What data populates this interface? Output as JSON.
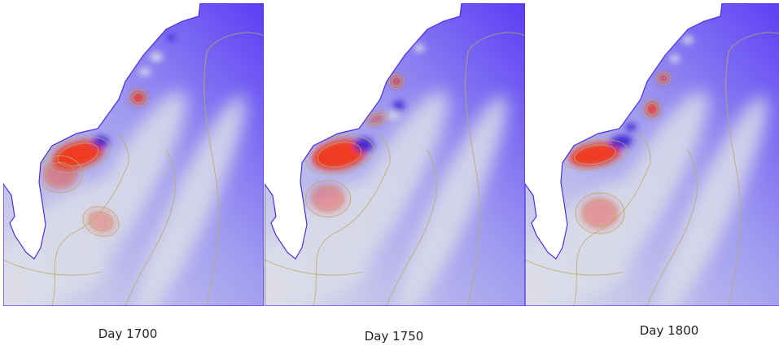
{
  "figure": {
    "panels": [
      {
        "label": "Day 1700"
      },
      {
        "label": "Day 1750"
      },
      {
        "label": "Day 1800"
      }
    ],
    "colormap": {
      "low": "#5b3cf5",
      "mid": "#dcdde8",
      "high": "#f03a22"
    },
    "contour_color": "#b5ad6a",
    "background_color": "#ffffff"
  }
}
